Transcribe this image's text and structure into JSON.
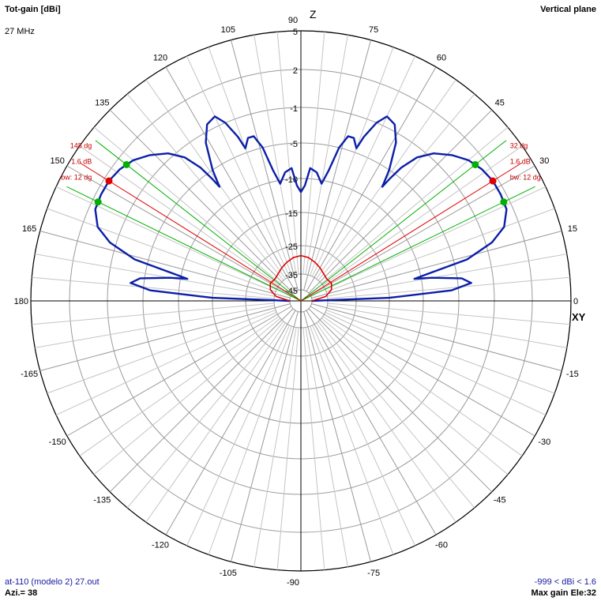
{
  "header": {
    "title_left": "Tot-gain [dBi]",
    "frequency": "27 MHz",
    "title_right": "Vertical plane"
  },
  "footer": {
    "file": "at-110 (modelo 2) 27.out",
    "azimuth": "Azi.= 38",
    "range": "-999 < dBi < 1.6",
    "max_gain": "Max gain Ele:32"
  },
  "chart_data": {
    "type": "polar",
    "title": "Tot-gain [dBi]",
    "subtitle": "Vertical plane",
    "axis_labels": {
      "z": "Z",
      "xy": "XY"
    },
    "angle_ticks": [
      "0",
      "15",
      "30",
      "45",
      "60",
      "75",
      "90",
      "105",
      "120",
      "135",
      "150",
      "165",
      "180",
      "-165",
      "-150",
      "-135",
      "-120",
      "-105",
      "-90",
      "-75",
      "-60",
      "-45",
      "-30",
      "-15"
    ],
    "angle_tick_values": [
      0,
      15,
      30,
      45,
      60,
      75,
      90,
      105,
      120,
      135,
      150,
      165,
      180,
      -165,
      -150,
      -135,
      -120,
      -105,
      -90,
      -75,
      -60,
      -45,
      -30,
      -15
    ],
    "gain_ticks": [
      "5",
      "2",
      "-1",
      "-5",
      "-10",
      "-15",
      "-25",
      "-35",
      "-45"
    ],
    "gain_tick_values": [
      5,
      2,
      -1,
      -5,
      -10,
      -15,
      -25,
      -35,
      -45
    ],
    "gain_ring_levels": [
      5,
      2,
      -1,
      -5,
      -10,
      -15,
      -25,
      -35,
      -45
    ],
    "grid": true,
    "series": [
      {
        "color": "#0b1fa8",
        "points": [
          [
            0,
            -45
          ],
          [
            2,
            -15
          ],
          [
            4,
            -6
          ],
          [
            6,
            -3.5
          ],
          [
            8,
            -4.5
          ],
          [
            10,
            -8.5
          ],
          [
            11,
            -11
          ],
          [
            12,
            -9
          ],
          [
            14,
            -3.5
          ],
          [
            17,
            -0.5
          ],
          [
            20,
            0.8
          ],
          [
            24,
            1.5
          ],
          [
            28,
            1.6
          ],
          [
            32,
            1.6
          ],
          [
            36,
            1.4
          ],
          [
            40,
            1.0
          ],
          [
            44,
            0.3
          ],
          [
            48,
            -0.6
          ],
          [
            51,
            -2
          ],
          [
            53,
            -4
          ],
          [
            54,
            -6
          ],
          [
            54.5,
            -7.5
          ],
          [
            56,
            -5
          ],
          [
            59,
            -2
          ],
          [
            62,
            -0.5
          ],
          [
            65,
            -0.2
          ],
          [
            67,
            -1
          ],
          [
            69,
            -3
          ],
          [
            70,
            -4.5
          ],
          [
            72,
            -3.5
          ],
          [
            74,
            -3.5
          ],
          [
            76,
            -5
          ],
          [
            78,
            -8.5
          ],
          [
            80,
            -10.5
          ],
          [
            83,
            -9
          ],
          [
            86,
            -8.5
          ],
          [
            88,
            -11
          ],
          [
            90,
            -12
          ],
          [
            92,
            -11
          ],
          [
            94,
            -8.5
          ],
          [
            97,
            -9
          ],
          [
            100,
            -10.5
          ],
          [
            102,
            -8.5
          ],
          [
            104,
            -5
          ],
          [
            106,
            -3.5
          ],
          [
            108,
            -3.5
          ],
          [
            110,
            -4.5
          ],
          [
            111,
            -3
          ],
          [
            113,
            -1
          ],
          [
            115,
            -0.2
          ],
          [
            118,
            -0.5
          ],
          [
            121,
            -2
          ],
          [
            124,
            -5
          ],
          [
            125.5,
            -7.5
          ],
          [
            126,
            -6
          ],
          [
            127,
            -4
          ],
          [
            129,
            -2
          ],
          [
            132,
            -0.6
          ],
          [
            136,
            0.3
          ],
          [
            140,
            1.0
          ],
          [
            144,
            1.4
          ],
          [
            148,
            1.6
          ],
          [
            152,
            1.6
          ],
          [
            156,
            1.5
          ],
          [
            160,
            0.8
          ],
          [
            163,
            -0.5
          ],
          [
            166,
            -3.5
          ],
          [
            168,
            -9
          ],
          [
            169,
            -11
          ],
          [
            170,
            -8.5
          ],
          [
            172,
            -4.5
          ],
          [
            174,
            -3.5
          ],
          [
            176,
            -6
          ],
          [
            178,
            -15
          ],
          [
            180,
            -45
          ]
        ]
      },
      {
        "color": "#e00000",
        "points": [
          [
            0,
            -45
          ],
          [
            10,
            -36
          ],
          [
            20,
            -33
          ],
          [
            30,
            -32
          ],
          [
            40,
            -32.5
          ],
          [
            50,
            -32
          ],
          [
            60,
            -31
          ],
          [
            70,
            -30
          ],
          [
            80,
            -29
          ],
          [
            90,
            -28.5
          ],
          [
            100,
            -29
          ],
          [
            110,
            -30
          ],
          [
            120,
            -31
          ],
          [
            130,
            -32
          ],
          [
            140,
            -32.5
          ],
          [
            150,
            -32
          ],
          [
            160,
            -33
          ],
          [
            170,
            -36
          ],
          [
            180,
            -45
          ]
        ]
      }
    ],
    "markers": {
      "max_direction_deg": [
        32,
        148
      ],
      "beamwidth_edges_deg": [
        26,
        38,
        142,
        154
      ],
      "right_labels": [
        "32 dg",
        "1.6 dB",
        "bw: 12 dg"
      ],
      "left_labels": [
        "148 dg",
        "1.6 dB",
        "bw: 12 dg"
      ],
      "max_color": "#e00000",
      "edge_color": "#00b000"
    }
  }
}
